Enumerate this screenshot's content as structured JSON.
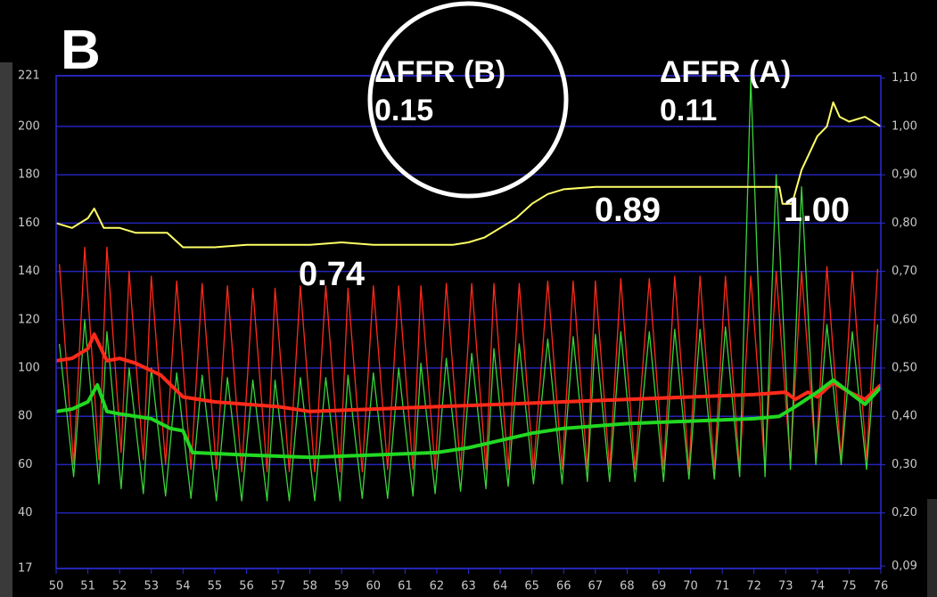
{
  "chart_data": {
    "type": "line",
    "panel_label": "B",
    "annotations": [
      {
        "text": "ΔFFR (B)"
      },
      {
        "text": "0.15"
      },
      {
        "text": "ΔFFR (A)"
      },
      {
        "text": "0.11"
      },
      {
        "text": "0.74"
      },
      {
        "text": "0.89"
      },
      {
        "text": "1.00"
      }
    ],
    "xlim": [
      50,
      76
    ],
    "xticks": [
      50,
      51,
      52,
      53,
      54,
      55,
      56,
      57,
      58,
      59,
      60,
      61,
      62,
      63,
      64,
      65,
      66,
      67,
      68,
      69,
      70,
      71,
      72,
      73,
      74,
      75,
      76
    ],
    "ylim": [
      17,
      221
    ],
    "yticks": [
      17,
      40,
      60,
      80,
      100,
      120,
      140,
      160,
      180,
      200,
      221
    ],
    "y2lim": [
      0.085,
      1.105
    ],
    "y2ticks": [
      {
        "value": 0.09,
        "label": "0,09"
      },
      {
        "value": 0.2,
        "label": "0,20"
      },
      {
        "value": 0.3,
        "label": "0,30"
      },
      {
        "value": 0.4,
        "label": "0,40"
      },
      {
        "value": 0.5,
        "label": "0,50"
      },
      {
        "value": 0.6,
        "label": "0,60"
      },
      {
        "value": 0.7,
        "label": "0,70"
      },
      {
        "value": 0.8,
        "label": "0,80"
      },
      {
        "value": 0.9,
        "label": "0,90"
      },
      {
        "value": 1.0,
        "label": "1,00"
      },
      {
        "value": 1.1,
        "label": "1,10"
      }
    ],
    "grid": true,
    "series": [
      {
        "color": "#ff2a1a",
        "width": 1.3,
        "x": [
          50.1,
          50.55,
          50.9,
          51.35,
          51.6,
          52.05,
          52.3,
          52.75,
          53.0,
          53.45,
          53.8,
          54.25,
          54.6,
          55.05,
          55.4,
          55.85,
          56.2,
          56.65,
          56.9,
          57.35,
          57.7,
          58.15,
          58.5,
          58.95,
          59.2,
          59.65,
          60.0,
          60.45,
          60.8,
          61.25,
          61.5,
          61.95,
          62.3,
          62.75,
          63.1,
          63.55,
          63.8,
          64.25,
          64.6,
          65.05,
          65.5,
          65.95,
          66.3,
          66.75,
          67.0,
          67.45,
          67.8,
          68.25,
          68.7,
          69.15,
          69.5,
          69.95,
          70.3,
          70.75,
          71.1,
          71.55,
          71.9,
          72.35,
          72.7,
          73.15,
          73.5,
          73.95,
          74.3,
          74.75,
          75.1,
          75.55,
          75.9
        ],
        "values": [
          143,
          60,
          150,
          62,
          150,
          65,
          140,
          62,
          138,
          60,
          136,
          58,
          135,
          58,
          134,
          57,
          133,
          57,
          133,
          57,
          134,
          57,
          134,
          57,
          133,
          57,
          134,
          58,
          134,
          58,
          134,
          58,
          135,
          58,
          135,
          58,
          135,
          58,
          135,
          58,
          136,
          58,
          136,
          58,
          136,
          58,
          137,
          58,
          137,
          58,
          138,
          58,
          138,
          58,
          138,
          58,
          138,
          58,
          140,
          60,
          140,
          62,
          142,
          62,
          140,
          62,
          141
        ]
      },
      {
        "color": "#3ad43a",
        "width": 1.3,
        "x": [
          50.1,
          50.55,
          50.9,
          51.35,
          51.6,
          52.05,
          52.3,
          52.75,
          53.0,
          53.45,
          53.8,
          54.25,
          54.6,
          55.05,
          55.4,
          55.85,
          56.2,
          56.65,
          56.9,
          57.35,
          57.7,
          58.15,
          58.5,
          58.95,
          59.2,
          59.65,
          60.0,
          60.45,
          60.8,
          61.25,
          61.5,
          61.95,
          62.3,
          62.75,
          63.1,
          63.55,
          63.8,
          64.25,
          64.6,
          65.05,
          65.5,
          65.95,
          66.3,
          66.75,
          67.0,
          67.45,
          67.8,
          68.25,
          68.7,
          69.15,
          69.5,
          69.95,
          70.3,
          70.75,
          71.1,
          71.55,
          71.9,
          72.35,
          72.7,
          73.15,
          73.5,
          73.95,
          74.3,
          74.75,
          75.1,
          75.55,
          75.9
        ],
        "values": [
          110,
          55,
          120,
          52,
          115,
          50,
          100,
          48,
          100,
          47,
          98,
          46,
          97,
          45,
          96,
          45,
          95,
          45,
          95,
          45,
          96,
          45,
          96,
          45,
          97,
          46,
          98,
          46,
          100,
          47,
          102,
          48,
          104,
          49,
          106,
          50,
          108,
          51,
          110,
          52,
          112,
          52,
          113,
          53,
          114,
          53,
          115,
          53,
          115,
          53,
          116,
          54,
          116,
          54,
          117,
          55,
          220,
          55,
          180,
          58,
          175,
          60,
          118,
          60,
          115,
          58,
          118
        ]
      },
      {
        "color": "#ff2a1a",
        "width": 4,
        "x": [
          50,
          50.5,
          51,
          51.2,
          51.6,
          52,
          52.5,
          53.3,
          54,
          55,
          56,
          57,
          58,
          60,
          62,
          64,
          66,
          68,
          70,
          72,
          73,
          73.3,
          73.7,
          74,
          74.5,
          75,
          75.5,
          76
        ],
        "values": [
          103,
          104,
          108,
          114,
          103,
          104,
          102,
          97,
          88,
          86,
          85,
          84,
          82,
          83,
          84,
          85,
          86,
          87,
          88,
          89,
          90,
          87,
          90,
          88,
          94,
          90,
          87,
          93
        ]
      },
      {
        "color": "#22d822",
        "width": 4,
        "x": [
          50,
          50.5,
          51,
          51.3,
          51.6,
          52,
          53,
          53.6,
          54,
          54.3,
          56,
          58,
          60,
          62,
          63,
          64,
          65,
          66,
          68,
          70,
          72,
          72.8,
          73.3,
          74,
          74.5,
          75,
          75.5,
          76
        ],
        "values": [
          82,
          83,
          86,
          93,
          82,
          81,
          79,
          75,
          74,
          65,
          64,
          63,
          64,
          65,
          67,
          70,
          73,
          75,
          77,
          78,
          79,
          80,
          84,
          90,
          95,
          90,
          85,
          92
        ]
      },
      {
        "color": "#ffff66",
        "width": 2,
        "axis": "y2",
        "x": [
          50,
          50.5,
          51,
          51.2,
          51.5,
          52,
          52.5,
          53,
          53.5,
          54,
          55,
          56,
          57,
          58,
          59,
          60,
          61,
          62,
          62.5,
          63,
          63.5,
          64,
          64.5,
          65,
          65.5,
          66,
          67,
          68,
          69,
          70,
          71,
          72,
          72.8,
          72.9,
          73.2,
          73.5,
          74,
          74.3,
          74.5,
          74.7,
          75,
          75.5,
          76
        ],
        "values": [
          0.8,
          0.79,
          0.81,
          0.83,
          0.79,
          0.79,
          0.78,
          0.78,
          0.78,
          0.75,
          0.75,
          0.755,
          0.755,
          0.755,
          0.76,
          0.755,
          0.755,
          0.755,
          0.755,
          0.76,
          0.77,
          0.79,
          0.81,
          0.84,
          0.86,
          0.87,
          0.875,
          0.875,
          0.875,
          0.875,
          0.875,
          0.875,
          0.875,
          0.84,
          0.84,
          0.91,
          0.98,
          1.0,
          1.05,
          1.02,
          1.01,
          1.02,
          1.0
        ]
      }
    ]
  }
}
